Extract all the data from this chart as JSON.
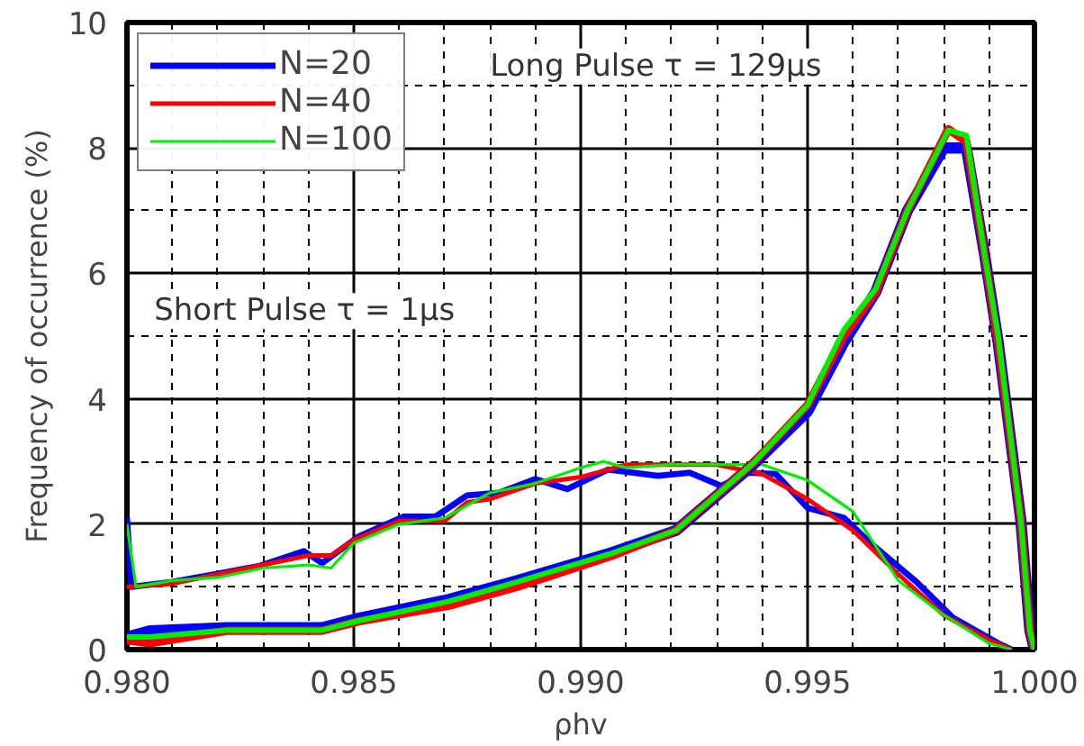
{
  "chart_data": {
    "type": "line",
    "xlabel": "ρhv",
    "ylabel": "Frequency of occurrence (%)",
    "xlim": [
      0.98,
      1.0
    ],
    "xticks": [
      {
        "value": 0.98,
        "label": "0.980"
      },
      {
        "value": 0.985,
        "label": "0.985"
      },
      {
        "value": 0.99,
        "label": "0.990"
      },
      {
        "value": 0.995,
        "label": "0.995"
      },
      {
        "value": 1.0,
        "label": "1.000"
      }
    ],
    "ylim": [
      0,
      10
    ],
    "yticks": [
      0,
      2,
      4,
      6,
      8,
      10
    ],
    "grid": true,
    "legend": "top left",
    "marker": "none",
    "line_style": "solid",
    "annotations": [
      "Long Pulse τ = 129µs",
      "Short Pulse τ = 1µs"
    ],
    "series": [
      {
        "name": "N=20",
        "color": "#0000ff",
        "x": [
          0.98,
          0.9801,
          0.981,
          0.9829,
          0.9839,
          0.9843,
          0.9851,
          0.9861,
          0.9868,
          0.9875,
          0.9882,
          0.989,
          0.9897,
          0.9906,
          0.9917,
          0.9924,
          0.9931,
          0.9937,
          0.9943,
          0.995,
          0.9958,
          0.9964,
          0.9974,
          0.9982,
          0.9992,
          0.9995
        ],
        "values": [
          2.1,
          1.0,
          1.08,
          1.33,
          1.57,
          1.38,
          1.8,
          2.12,
          2.12,
          2.46,
          2.5,
          2.72,
          2.56,
          2.87,
          2.77,
          2.82,
          2.61,
          2.82,
          2.8,
          2.26,
          2.1,
          1.69,
          1.08,
          0.51,
          0.1,
          0
        ]
      },
      {
        "name": "N=40",
        "color": "#ff0000",
        "x": [
          0.98,
          0.981,
          0.982,
          0.983,
          0.984,
          0.9845,
          0.985,
          0.986,
          0.987,
          0.9875,
          0.988,
          0.989,
          0.99,
          0.991,
          0.992,
          0.993,
          0.994,
          0.995,
          0.996,
          0.997,
          0.998,
          0.999,
          0.9995
        ],
        "values": [
          1.0,
          1.05,
          1.2,
          1.35,
          1.5,
          1.5,
          1.75,
          2.05,
          2.05,
          2.35,
          2.4,
          2.65,
          2.75,
          2.95,
          2.95,
          2.95,
          2.8,
          2.4,
          1.9,
          1.2,
          0.55,
          0.15,
          0
        ]
      },
      {
        "name": "N=100",
        "color": "#00ee00",
        "x": [
          0.98,
          0.9802,
          0.981,
          0.982,
          0.983,
          0.984,
          0.9845,
          0.985,
          0.986,
          0.987,
          0.988,
          0.989,
          0.99,
          0.9905,
          0.991,
          0.992,
          0.993,
          0.994,
          0.995,
          0.996,
          0.997,
          0.998,
          0.999,
          0.9995
        ],
        "values": [
          2.0,
          1.0,
          1.1,
          1.15,
          1.3,
          1.35,
          1.3,
          1.7,
          2.0,
          2.1,
          2.5,
          2.65,
          2.9,
          3.0,
          2.9,
          2.95,
          2.95,
          2.95,
          2.7,
          2.2,
          1.1,
          0.55,
          0.1,
          0
        ]
      },
      {
        "color": "#0000ff",
        "x": [
          0.98,
          0.9805,
          0.9822,
          0.9843,
          0.9851,
          0.9871,
          0.9886,
          0.9907,
          0.9921,
          0.9938,
          0.995,
          0.9958,
          0.9965,
          0.9972,
          0.998,
          0.9985,
          0.9989,
          0.9992,
          0.9997,
          0.9999,
          1.0
        ],
        "values": [
          0.2,
          0.3,
          0.35,
          0.35,
          0.5,
          0.8,
          1.1,
          1.55,
          1.9,
          2.95,
          3.8,
          4.9,
          5.7,
          7.0,
          8.0,
          8.0,
          6.3,
          4.9,
          2.06,
          0.3,
          0
        ]
      },
      {
        "color": "#ff0000",
        "x": [
          0.98,
          0.9805,
          0.9822,
          0.9843,
          0.9851,
          0.9871,
          0.9886,
          0.9907,
          0.9921,
          0.9938,
          0.995,
          0.9958,
          0.9965,
          0.9972,
          0.9981,
          0.9985,
          0.9989,
          0.9992,
          0.9997,
          0.9999,
          1.0
        ],
        "values": [
          0.15,
          0.1,
          0.3,
          0.3,
          0.45,
          0.7,
          1.0,
          1.5,
          1.9,
          2.97,
          3.9,
          5.0,
          5.7,
          7.0,
          8.3,
          8.1,
          6.3,
          4.9,
          2.06,
          0.3,
          0
        ]
      },
      {
        "color": "#00ee00",
        "x": [
          0.98,
          0.9805,
          0.9822,
          0.9843,
          0.9851,
          0.9871,
          0.9886,
          0.9907,
          0.9921,
          0.9938,
          0.995,
          0.9958,
          0.9965,
          0.9972,
          0.9981,
          0.9985,
          0.9989,
          0.9992,
          0.9997,
          0.9999,
          1.0
        ],
        "values": [
          0.2,
          0.2,
          0.31,
          0.31,
          0.46,
          0.77,
          1.08,
          1.54,
          1.9,
          2.97,
          3.9,
          5.1,
          5.75,
          7.0,
          8.28,
          8.2,
          6.3,
          5.0,
          2.06,
          0.3,
          0
        ]
      }
    ]
  }
}
